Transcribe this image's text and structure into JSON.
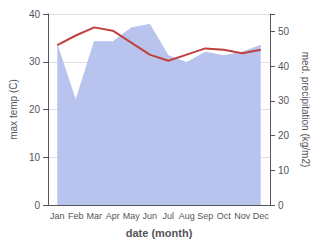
{
  "chart_data": {
    "type": "line",
    "xlabel": "date (month)",
    "ylabel": "max temp (C)",
    "y2label": "med. precipitation (kg/m2)",
    "categories": [
      "Jan",
      "Feb",
      "Mar",
      "Apr",
      "May",
      "Jun",
      "Jul",
      "Aug",
      "Sep",
      "Oct",
      "Nov",
      "Dec"
    ],
    "series": [
      {
        "type": "area",
        "axis": "y2",
        "color": "#b8c4ee",
        "values": [
          46,
          30,
          47,
          47,
          51,
          52,
          43,
          41,
          44,
          43,
          44,
          46
        ]
      },
      {
        "type": "line",
        "color": "#c0413e",
        "values": [
          33.5,
          35.5,
          37.2,
          36.5,
          34.0,
          31.5,
          30.2,
          31.5,
          32.8,
          32.5,
          31.8,
          32.5
        ]
      }
    ],
    "ylim": [
      0,
      40
    ],
    "yticks": [
      0,
      10,
      20,
      30,
      40
    ],
    "y2lim": [
      0,
      55
    ],
    "y2ticks": [
      0,
      10,
      20,
      30,
      40,
      50
    ],
    "grid": true
  }
}
